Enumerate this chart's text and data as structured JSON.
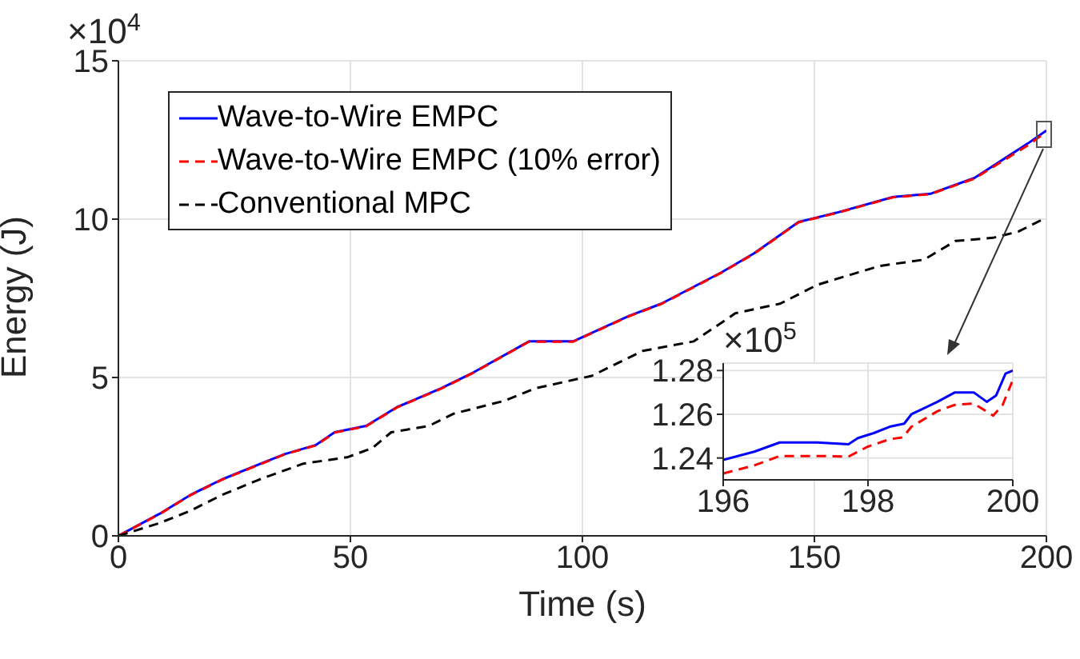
{
  "chart_data": [
    {
      "type": "line",
      "xlabel": "Time (s)",
      "ylabel": "Energy (J)",
      "annotations": [
        "×10$^{4}$"
      ],
      "xlim": [
        0,
        200
      ],
      "ylim": [
        0,
        15
      ],
      "xticks": [
        0,
        50,
        100,
        150,
        200
      ],
      "yticks": [
        0,
        5,
        10,
        15
      ],
      "grid": true,
      "legend": "top left",
      "marker": "none",
      "series": [
        {
          "name": "Wave-to-Wire EMPC",
          "color": "#0000ff",
          "line_style": "solid",
          "x": [
            0,
            8.8,
            15.5,
            22.3,
            29,
            35.8,
            42.6,
            46.6,
            53.4,
            60,
            69.6,
            76.4,
            88.5,
            98,
            110,
            117,
            130,
            137,
            146.6,
            154.7,
            167,
            175,
            184.5,
            196,
            200
          ],
          "values": [
            0,
            0.69,
            1.29,
            1.78,
            2.18,
            2.58,
            2.87,
            3.27,
            3.47,
            4.06,
            4.66,
            5.15,
            6.14,
            6.14,
            6.94,
            7.33,
            8.32,
            8.92,
            9.91,
            10.2,
            10.7,
            10.8,
            11.3,
            12.39,
            12.8
          ]
        },
        {
          "name": "Wave-to-Wire EMPC (10% error)",
          "color": "#ff0000",
          "line_style": "dashed",
          "x": [
            0,
            8.8,
            15.5,
            22.3,
            29,
            35.8,
            42.6,
            46.6,
            53.4,
            60,
            69.6,
            76.4,
            88.5,
            98,
            110,
            117,
            130,
            137,
            146.6,
            154.7,
            167,
            175,
            184.5,
            196,
            200
          ],
          "values": [
            0,
            0.68,
            1.28,
            1.77,
            2.17,
            2.57,
            2.86,
            3.26,
            3.46,
            4.05,
            4.65,
            5.14,
            6.13,
            6.13,
            6.93,
            7.32,
            8.31,
            8.91,
            9.9,
            10.19,
            10.69,
            10.79,
            11.28,
            12.33,
            12.76
          ]
        },
        {
          "name": "Conventional MPC",
          "color": "#000000",
          "line_style": "dashed",
          "x": [
            0,
            8.8,
            15.5,
            22.3,
            30.4,
            39.9,
            49.3,
            54.7,
            58.8,
            66.9,
            72.3,
            83.1,
            89.9,
            102,
            113,
            124,
            133,
            142.6,
            150.7,
            164,
            173.6,
            180.4,
            188.5,
            194,
            199.3
          ],
          "values": [
            0,
            0.4,
            0.79,
            1.29,
            1.78,
            2.28,
            2.48,
            2.77,
            3.27,
            3.47,
            3.86,
            4.26,
            4.66,
            5.05,
            5.84,
            6.14,
            7.03,
            7.33,
            7.93,
            8.52,
            8.72,
            9.31,
            9.41,
            9.61,
            10.0
          ]
        }
      ]
    },
    {
      "type": "line",
      "annotations": [
        "×10$^{5}$"
      ],
      "xlim": [
        196,
        200
      ],
      "ylim": [
        1.23,
        1.2834
      ],
      "xticks": [
        196,
        198,
        200
      ],
      "yticks": [
        1.24,
        1.26,
        1.28
      ],
      "grid": true,
      "marker": "none",
      "series": [
        {
          "color": "#0000ff",
          "line_style": "solid",
          "x": [
            196,
            196.43,
            196.78,
            197.3,
            197.73,
            197.86,
            198.08,
            198.3,
            198.5,
            198.6,
            198.96,
            199.2,
            199.46,
            199.64,
            199.77,
            199.9,
            200
          ],
          "values": [
            1.2391,
            1.2429,
            1.2471,
            1.2471,
            1.2463,
            1.2491,
            1.2514,
            1.2543,
            1.2557,
            1.26,
            1.2657,
            1.27,
            1.27,
            1.2657,
            1.2686,
            1.2786,
            1.28
          ]
        },
        {
          "color": "#ff0000",
          "line_style": "dashed",
          "x": [
            196,
            196.43,
            196.78,
            197.39,
            197.73,
            197.99,
            198.3,
            198.48,
            198.6,
            198.96,
            199.2,
            199.46,
            199.73,
            199.86,
            200
          ],
          "values": [
            1.2329,
            1.2366,
            1.2409,
            1.2409,
            1.2406,
            1.2451,
            1.2486,
            1.2494,
            1.2543,
            1.2614,
            1.2643,
            1.2649,
            1.2594,
            1.2643,
            1.2757
          ]
        }
      ]
    }
  ]
}
